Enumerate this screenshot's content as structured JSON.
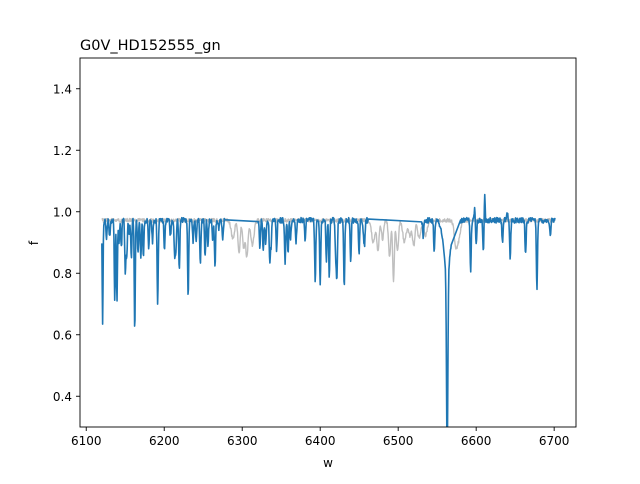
{
  "chart_data": {
    "type": "line",
    "title": "G0V_HD152555_gn",
    "xlabel": "w",
    "ylabel": "f",
    "xlim": [
      6092,
      6728
    ],
    "ylim": [
      0.3,
      1.5
    ],
    "xticks": [
      6100,
      6200,
      6300,
      6400,
      6500,
      6600,
      6700
    ],
    "yticks": [
      0.4,
      0.6,
      0.8,
      1.0,
      1.2,
      1.4
    ],
    "xtick_labels": [
      "6100",
      "6200",
      "6300",
      "6400",
      "6500",
      "6600",
      "6700"
    ],
    "ytick_labels": [
      "0.4",
      "0.6",
      "0.8",
      "1.0",
      "1.2",
      "1.4"
    ],
    "grid": false,
    "series": [
      {
        "color": "#bfbfbf",
        "continuum": 0.972,
        "range": [
          6120,
          6701
        ],
        "noise": 0.006,
        "lines": [
          [
            6288,
            0.06,
            3
          ],
          [
            6296,
            0.11,
            2
          ],
          [
            6302,
            0.09,
            2
          ],
          [
            6306,
            0.12,
            2
          ],
          [
            6313,
            0.08,
            3
          ],
          [
            6468,
            0.07,
            3
          ],
          [
            6474,
            0.1,
            2
          ],
          [
            6480,
            0.06,
            2
          ],
          [
            6489,
            0.12,
            2
          ],
          [
            6494,
            0.2,
            1.5
          ],
          [
            6499,
            0.1,
            2
          ],
          [
            6508,
            0.07,
            3
          ],
          [
            6515,
            0.05,
            3
          ],
          [
            6520,
            0.08,
            2
          ],
          [
            6527,
            0.06,
            3
          ],
          [
            6535,
            0.05,
            3
          ],
          [
            6574,
            0.08,
            3
          ],
          [
            6578,
            0.05,
            3
          ]
        ]
      },
      {
        "color": "#1f77b4",
        "continuum": 0.972,
        "range": [
          6120,
          6701
        ],
        "noise": 0.009,
        "gaps": [
          [
            6278,
            6320
          ],
          [
            6462,
            6530
          ],
          [
            6568,
            6580
          ]
        ],
        "lines": [
          [
            6121.0,
            0.33,
            0.8
          ],
          [
            6126,
            0.06,
            1
          ],
          [
            6130,
            0.05,
            1
          ],
          [
            6136.6,
            0.26,
            0.9
          ],
          [
            6139.4,
            0.26,
            0.9
          ],
          [
            6142,
            0.07,
            1
          ],
          [
            6145,
            0.09,
            1
          ],
          [
            6150.1,
            0.17,
            1
          ],
          [
            6152,
            0.12,
            1
          ],
          [
            6155,
            0.05,
            1
          ],
          [
            6157.8,
            0.12,
            1
          ],
          [
            6162.2,
            0.37,
            0.9
          ],
          [
            6166.4,
            0.1,
            1
          ],
          [
            6170,
            0.12,
            1
          ],
          [
            6173.3,
            0.11,
            1
          ],
          [
            6180.2,
            0.09,
            1
          ],
          [
            6185,
            0.07,
            1
          ],
          [
            6191.6,
            0.27,
            1
          ],
          [
            6200.3,
            0.09,
            1
          ],
          [
            6208,
            0.05,
            1
          ],
          [
            6213.4,
            0.12,
            1
          ],
          [
            6215,
            0.09,
            1
          ],
          [
            6219.3,
            0.16,
            1
          ],
          [
            6230.7,
            0.26,
            0.9
          ],
          [
            6237,
            0.07,
            1
          ],
          [
            6241,
            0.07,
            1
          ],
          [
            6246.3,
            0.14,
            1
          ],
          [
            6252.6,
            0.17,
            1
          ],
          [
            6256,
            0.09,
            1
          ],
          [
            6262,
            0.06,
            1
          ],
          [
            6265.1,
            0.15,
            1
          ],
          [
            6270,
            0.06,
            1
          ],
          [
            6275,
            0.06,
            1
          ],
          [
            6322.7,
            0.09,
            1
          ],
          [
            6327.0,
            0.1,
            1
          ],
          [
            6330.1,
            0.07,
            1
          ],
          [
            6335.3,
            0.13,
            1
          ],
          [
            6337,
            0.08,
            1
          ],
          [
            6344.1,
            0.1,
            1
          ],
          [
            6355.0,
            0.14,
            1
          ],
          [
            6358.7,
            0.11,
            1
          ],
          [
            6362,
            0.06,
            1
          ],
          [
            6369,
            0.07,
            1
          ],
          [
            6380.7,
            0.07,
            1
          ],
          [
            6393.6,
            0.2,
            1
          ],
          [
            6400.0,
            0.21,
            1
          ],
          [
            6408.0,
            0.13,
            1
          ],
          [
            6411.6,
            0.18,
            1
          ],
          [
            6419.9,
            0.12,
            1
          ],
          [
            6421.4,
            0.18,
            1
          ],
          [
            6430.8,
            0.21,
            1
          ],
          [
            6439.1,
            0.13,
            1
          ],
          [
            6449.8,
            0.11,
            1
          ],
          [
            6455.6,
            0.05,
            1
          ],
          [
            6457,
            0.07,
            1
          ],
          [
            6532,
            0.05,
            1
          ],
          [
            6546.2,
            0.1,
            1
          ],
          [
            6592.9,
            0.17,
            1
          ],
          [
            6600,
            0.07,
            1
          ],
          [
            6609.1,
            0.1,
            1
          ],
          [
            6633.7,
            0.07,
            1
          ],
          [
            6643.6,
            0.12,
            1
          ],
          [
            6663.3,
            0.11,
            1
          ],
          [
            6677.9,
            0.22,
            1
          ],
          [
            6695,
            0.05,
            1
          ]
        ],
        "emission": [
          [
            6253,
            0.06,
            1
          ],
          [
            6270,
            0.03,
            1
          ],
          [
            6598,
            0.04,
            1
          ],
          [
            6611,
            0.09,
            0.8
          ],
          [
            6640,
            0.02,
            1
          ]
        ],
        "halpha": {
          "center": 6562.8,
          "depth": 0.6,
          "core_width": 1.2,
          "wing_depth": 0.17,
          "wing_width": 6
        }
      }
    ]
  }
}
